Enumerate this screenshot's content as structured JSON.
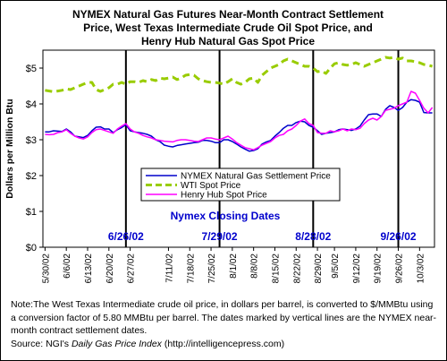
{
  "chart_data": {
    "type": "line",
    "title": "NYMEX Natural Gas Futures Near-Month Contract Settlement\nPrice, West Texas Intermediate Crude Oil Spot Price, and\nHenry Hub Natural Gas Spot Price",
    "ylabel": "Dollars per Million Btu",
    "xlabel": "",
    "ylim": [
      0,
      5.5
    ],
    "yticks": [
      "$0",
      "$1",
      "$2",
      "$3",
      "$4",
      "$5"
    ],
    "yticks_values": [
      0,
      1,
      2,
      3,
      4,
      5
    ],
    "x": [
      "5/30/02",
      "5/31/02",
      "6/3/02",
      "6/4/02",
      "6/5/02",
      "6/6/02",
      "6/7/02",
      "6/10/02",
      "6/11/02",
      "6/12/02",
      "6/13/02",
      "6/14/02",
      "6/17/02",
      "6/18/02",
      "6/19/02",
      "6/20/02",
      "6/21/02",
      "6/24/02",
      "6/25/02",
      "6/26/02",
      "6/27/02",
      "6/28/02",
      "7/1/02",
      "7/2/02",
      "7/3/02",
      "7/5/02",
      "7/8/02",
      "7/9/02",
      "7/10/02",
      "7/11/02",
      "7/12/02",
      "7/15/02",
      "7/16/02",
      "7/17/02",
      "7/18/02",
      "7/19/02",
      "7/22/02",
      "7/23/02",
      "7/24/02",
      "7/25/02",
      "7/26/02",
      "7/29/02",
      "7/30/02",
      "7/31/02",
      "8/1/02",
      "8/2/02",
      "8/5/02",
      "8/6/02",
      "8/7/02",
      "8/8/02",
      "8/9/02",
      "8/12/02",
      "8/13/02",
      "8/14/02",
      "8/15/02",
      "8/16/02",
      "8/19/02",
      "8/20/02",
      "8/21/02",
      "8/22/02",
      "8/23/02",
      "8/26/02",
      "8/27/02",
      "8/28/02",
      "8/29/02",
      "8/30/02",
      "9/3/02",
      "9/4/02",
      "9/5/02",
      "9/6/02",
      "9/9/02",
      "9/10/02",
      "9/11/02",
      "9/12/02",
      "9/13/02",
      "9/16/02",
      "9/17/02",
      "9/18/02",
      "9/19/02",
      "9/20/02",
      "9/23/02",
      "9/24/02",
      "9/25/02",
      "9/26/02",
      "9/27/02",
      "9/30/02",
      "10/1/02",
      "10/2/02",
      "10/3/02",
      "10/4/02",
      "10/7/02",
      "10/8/02"
    ],
    "xtick_labels": [
      "5/30/02",
      "6/6/02",
      "6/13/02",
      "6/20/02",
      "6/27/02",
      "7/4/02",
      "7/11/02",
      "7/18/02",
      "7/25/02",
      "8/1/02",
      "8/8/02",
      "8/15/02",
      "8/22/02",
      "8/29/02",
      "9/5/02",
      "9/12/02",
      "9/19/02",
      "9/26/02",
      "10/3/02"
    ],
    "series": [
      {
        "name": "NYMEX Natural Gas Settlement Price",
        "color": "#0000cc",
        "style": "solid",
        "values": [
          3.22,
          3.22,
          3.25,
          3.24,
          3.23,
          3.3,
          3.22,
          3.1,
          3.08,
          3.06,
          3.12,
          3.25,
          3.35,
          3.36,
          3.3,
          3.3,
          3.2,
          3.28,
          3.34,
          3.42,
          3.25,
          3.22,
          3.2,
          3.18,
          3.15,
          3.1,
          3.0,
          2.95,
          2.85,
          2.82,
          2.8,
          2.84,
          2.86,
          2.88,
          2.9,
          2.92,
          2.93,
          2.98,
          2.98,
          2.96,
          2.92,
          2.92,
          3.0,
          3.0,
          2.95,
          2.88,
          2.8,
          2.74,
          2.68,
          2.7,
          2.75,
          2.88,
          2.94,
          2.98,
          3.1,
          3.2,
          3.32,
          3.4,
          3.4,
          3.48,
          3.52,
          3.5,
          3.4,
          3.35,
          3.25,
          3.15,
          3.18,
          3.2,
          3.22,
          3.28,
          3.3,
          3.28,
          3.26,
          3.3,
          3.38,
          3.55,
          3.7,
          3.72,
          3.72,
          3.65,
          3.85,
          3.95,
          3.9,
          3.82,
          3.9,
          4.05,
          4.12,
          4.1,
          4.05,
          3.76,
          3.75,
          3.75
        ]
      },
      {
        "name": "WTI Spot Price",
        "color": "#99cc00",
        "style": "dashed",
        "values": [
          4.38,
          4.36,
          4.34,
          4.36,
          4.38,
          4.42,
          4.4,
          4.45,
          4.5,
          4.55,
          4.6,
          4.6,
          4.4,
          4.35,
          4.4,
          4.45,
          4.55,
          4.55,
          4.6,
          4.55,
          4.62,
          4.62,
          4.6,
          4.65,
          4.62,
          4.68,
          4.65,
          4.72,
          4.7,
          4.72,
          4.75,
          4.68,
          4.72,
          4.8,
          4.82,
          4.8,
          4.7,
          4.65,
          4.62,
          4.6,
          4.6,
          4.58,
          4.55,
          4.62,
          4.7,
          4.6,
          4.55,
          4.6,
          4.7,
          4.72,
          4.6,
          4.8,
          4.9,
          5.0,
          5.05,
          5.1,
          5.2,
          5.25,
          5.2,
          5.15,
          5.1,
          5.05,
          5.05,
          5.0,
          4.9,
          4.92,
          4.85,
          5.0,
          5.12,
          5.15,
          5.1,
          5.08,
          5.1,
          5.15,
          5.1,
          5.05,
          5.1,
          5.15,
          5.2,
          5.25,
          5.3,
          5.28,
          5.3,
          5.25,
          5.28,
          5.2,
          5.2,
          5.18,
          5.15,
          5.1,
          5.08,
          5.05
        ]
      },
      {
        "name": "Henry Hub Spot Price",
        "color": "#ff00ff",
        "style": "solid",
        "values": [
          3.15,
          3.14,
          3.15,
          3.2,
          3.22,
          3.28,
          3.18,
          3.1,
          3.05,
          3.02,
          3.08,
          3.2,
          3.28,
          3.3,
          3.26,
          3.22,
          3.18,
          3.3,
          3.38,
          3.45,
          3.3,
          3.22,
          3.18,
          3.12,
          3.08,
          3.05,
          3.0,
          2.98,
          2.96,
          2.95,
          2.94,
          2.98,
          3.0,
          3.0,
          2.98,
          2.96,
          2.95,
          3.0,
          3.05,
          3.05,
          3.02,
          3.0,
          3.05,
          3.1,
          3.02,
          2.92,
          2.85,
          2.78,
          2.75,
          2.72,
          2.78,
          2.85,
          2.9,
          2.95,
          3.05,
          3.12,
          3.15,
          3.25,
          3.3,
          3.4,
          3.52,
          3.58,
          3.45,
          3.4,
          3.2,
          3.18,
          3.18,
          3.25,
          3.22,
          3.25,
          3.3,
          3.25,
          3.3,
          3.28,
          3.32,
          3.45,
          3.55,
          3.6,
          3.55,
          3.65,
          3.82,
          3.85,
          3.88,
          3.95,
          4.0,
          4.05,
          4.35,
          4.3,
          4.1,
          3.88,
          3.75,
          3.9
        ]
      }
    ],
    "vertical_markers": [
      "6/26/02",
      "7/29/02",
      "8/28/02",
      "9/26/02"
    ],
    "marker_caption": "Nymex Closing Dates",
    "grid": false,
    "legend_position": "center",
    "note": "Note:The West Texas Intermediate crude oil price, in dollars per barrel,  is converted to $/MMBtu using a conversion factor of 5.80 MMBtu per barrel.  The dates marked by vertical lines are the NYMEX near-month contract settlement dates.",
    "source_prefix": "Source:  NGI's ",
    "source_italic": "Daily Gas Price Index",
    "source_suffix": " (http://intelligencepress.com)"
  }
}
